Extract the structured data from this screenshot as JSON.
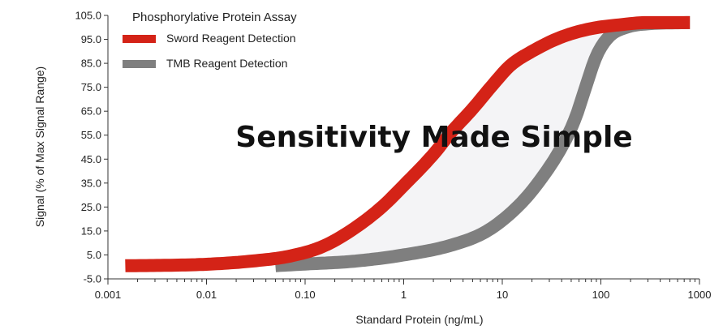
{
  "chart_data": {
    "type": "line",
    "title": "Phosphorylative Protein Assay",
    "overlay_text": "Sensitivity Made Simple",
    "xlabel": "Standard Protein (ng/mL)",
    "ylabel": "Signal (% of Max Signal Range)",
    "x_scale": "log",
    "xlim": [
      0.001,
      1000
    ],
    "ylim": [
      -5,
      105
    ],
    "x_ticks": [
      {
        "value": 0.001,
        "label": "0.001"
      },
      {
        "value": 0.01,
        "label": "0.01"
      },
      {
        "value": 0.1,
        "label": "0.10"
      },
      {
        "value": 1,
        "label": "1"
      },
      {
        "value": 10,
        "label": "10"
      },
      {
        "value": 100,
        "label": "100"
      },
      {
        "value": 1000,
        "label": "1000"
      }
    ],
    "y_ticks": [
      {
        "value": 105,
        "label": "105.0"
      },
      {
        "value": 95,
        "label": "95.0"
      },
      {
        "value": 85,
        "label": "85.0"
      },
      {
        "value": 75,
        "label": "75.0"
      },
      {
        "value": 65,
        "label": "65.0"
      },
      {
        "value": 55,
        "label": "55.0"
      },
      {
        "value": 45,
        "label": "45.0"
      },
      {
        "value": 35,
        "label": "35.0"
      },
      {
        "value": 25,
        "label": "25.0"
      },
      {
        "value": 15,
        "label": "15.0"
      },
      {
        "value": 5,
        "label": "5.0"
      },
      {
        "value": -5,
        "label": "-5.0"
      }
    ],
    "grid": false,
    "legend_position": "top-left",
    "shaded_region_between_series": true,
    "shade_color": "#f4f4f6",
    "series": [
      {
        "name": "Sword Reagent Detection",
        "color": "#d42317",
        "x": [
          0.0015,
          0.003,
          0.01,
          0.03,
          0.07,
          0.15,
          0.3,
          0.6,
          1,
          2,
          3,
          5,
          8,
          12,
          20,
          40,
          80,
          150,
          300,
          800
        ],
        "y": [
          0.5,
          0.6,
          1.1,
          2.5,
          4.5,
          8.5,
          15.5,
          25,
          34,
          47,
          56,
          66,
          76,
          84,
          90,
          96,
          99.5,
          101,
          102,
          102
        ]
      },
      {
        "name": "TMB Reagent Detection",
        "color": "#7f7f7f",
        "x": [
          0.05,
          0.1,
          0.3,
          1,
          3,
          7,
          15,
          25,
          40,
          55,
          70,
          90,
          120,
          180,
          300,
          800
        ],
        "y": [
          0.5,
          1.2,
          2.3,
          5,
          9,
          15,
          26,
          37,
          50,
          62,
          75,
          88,
          96,
          100,
          101.5,
          102
        ]
      }
    ]
  }
}
